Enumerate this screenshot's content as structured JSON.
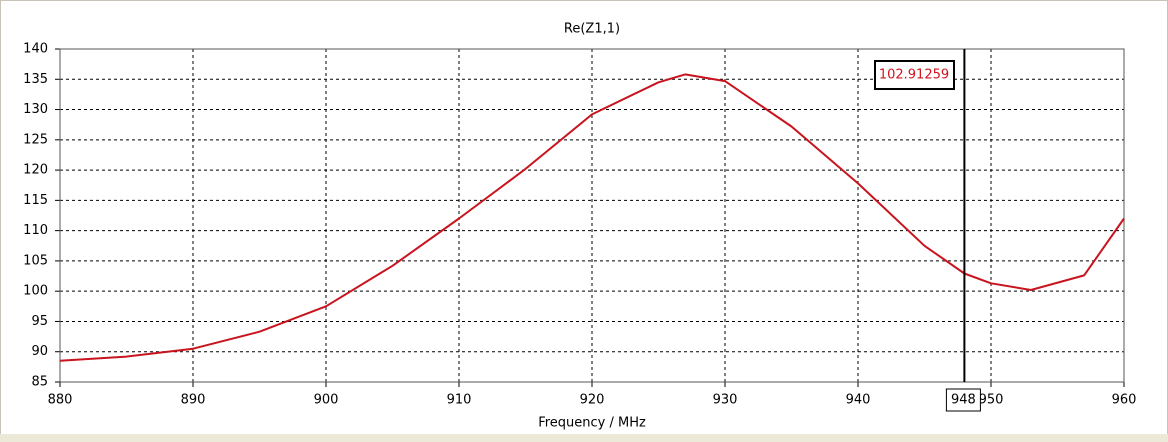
{
  "chart_data": {
    "type": "line",
    "title": "Re(Z1,1)",
    "x_label": "Frequency / MHz",
    "xlim": [
      880,
      960
    ],
    "xticks": [
      880,
      890,
      900,
      910,
      920,
      930,
      940,
      950,
      960
    ],
    "ylim": [
      85,
      140
    ],
    "yticks": [
      85,
      90,
      95,
      100,
      105,
      110,
      115,
      120,
      125,
      130,
      135,
      140
    ],
    "grid": true,
    "series": [
      {
        "color": "#c8141e",
        "x": [
          880,
          885,
          890,
          895,
          900,
          905,
          910,
          915,
          920,
          925,
          927,
          930,
          935,
          940,
          945,
          948,
          950,
          953,
          957,
          960
        ],
        "values": [
          88.5,
          89.2,
          90.5,
          93.3,
          97.5,
          104.2,
          112.0,
          120.2,
          129.2,
          134.5,
          135.8,
          134.7,
          127.2,
          117.8,
          107.5,
          102.91259,
          101.3,
          100.2,
          102.6,
          112.0
        ]
      }
    ],
    "marker": {
      "x": 948,
      "value": 102.91259
    }
  }
}
